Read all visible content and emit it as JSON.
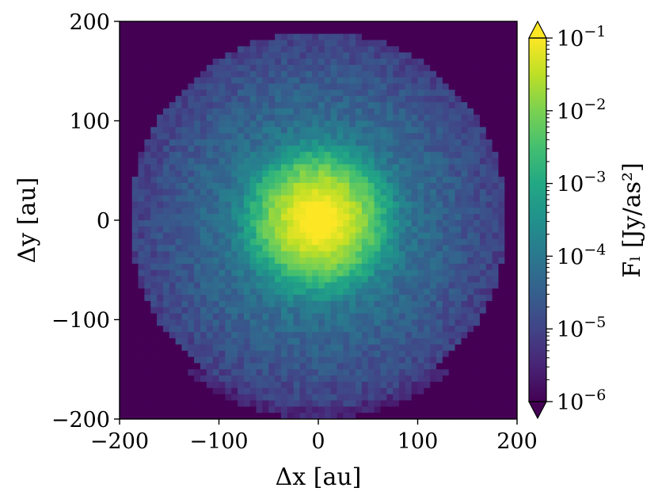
{
  "chart_data": {
    "type": "heatmap",
    "title": "",
    "xlabel": "Δx [au]",
    "ylabel": "Δy [au]",
    "xlim": [
      -200,
      200
    ],
    "ylim": [
      -200,
      200
    ],
    "xticks": [
      -200,
      -100,
      0,
      100,
      200
    ],
    "yticks": [
      -200,
      -100,
      0,
      100,
      200
    ],
    "xtick_labels": [
      "−200",
      "−100",
      "0",
      "100",
      "200"
    ],
    "ytick_labels": [
      "−200",
      "−100",
      "0",
      "100",
      "200"
    ],
    "colorbar": {
      "label": "Fₗ [Jy/as²]",
      "scale": "log",
      "colormap": "viridis",
      "vmin": 1e-06,
      "vmax": 0.1,
      "extend": "both",
      "ticks": [
        1e-06,
        1e-05,
        0.0001,
        0.001,
        0.01,
        0.1
      ],
      "tick_labels": [
        {
          "base": "10",
          "exp": "−6"
        },
        {
          "base": "10",
          "exp": "−5"
        },
        {
          "base": "10",
          "exp": "−4"
        },
        {
          "base": "10",
          "exp": "−3"
        },
        {
          "base": "10",
          "exp": "−2"
        },
        {
          "base": "10",
          "exp": "−1"
        }
      ]
    },
    "grid_cells": 64,
    "structure": {
      "central_peak_flux": 0.1,
      "central_core_radius_au": 22,
      "disk_outer_radius_au": 190,
      "disk_edge_flux": 1e-05,
      "lower_arc_radius_au": 195,
      "background_flux": 1e-06
    }
  }
}
